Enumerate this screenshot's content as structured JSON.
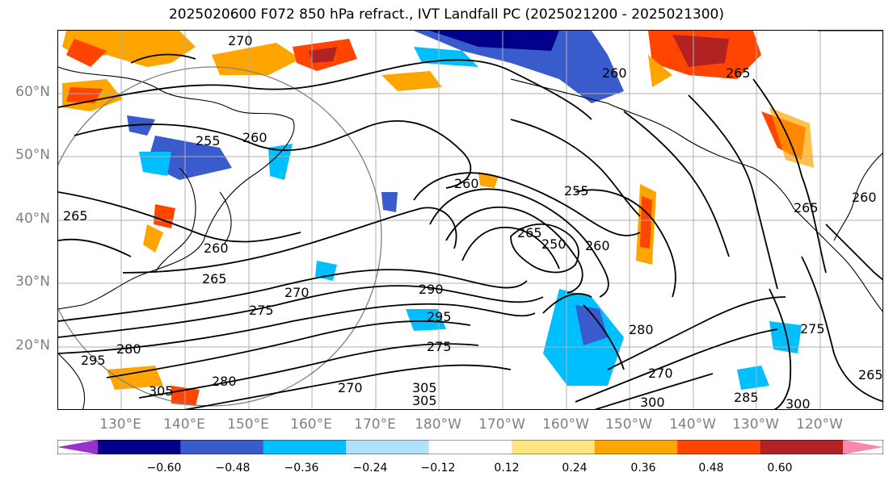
{
  "title": "2025020600 F072 850 hPa refract., IVT Landfall PC (2025021200 - 2025021300)",
  "lat_labels": [
    "60°N",
    "50°N",
    "40°N",
    "30°N",
    "20°N"
  ],
  "lon_labels": [
    "130°E",
    "140°E",
    "150°E",
    "160°E",
    "170°E",
    "180°W",
    "170°W",
    "160°W",
    "150°W",
    "140°W",
    "130°W",
    "120°W"
  ],
  "colorbar": {
    "colors": [
      "#9932cc",
      "#00008b",
      "#3a5bcc",
      "#00bfff",
      "#b0e2ff",
      "#ffffff",
      "#ffe680",
      "#ffa500",
      "#ff4500",
      "#b22222",
      "#ff88aa"
    ],
    "tick_labels": [
      "−0.60",
      "−0.48",
      "−0.36",
      "−0.24",
      "−0.12",
      "0.12",
      "0.24",
      "0.36",
      "0.48",
      "0.60"
    ]
  },
  "contour_labels": [
    "270",
    "255",
    "260",
    "260",
    "255",
    "265",
    "250",
    "260",
    "265",
    "270",
    "275",
    "280",
    "290",
    "295",
    "275",
    "295",
    "280",
    "280",
    "270",
    "305",
    "305",
    "305",
    "300",
    "265",
    "260",
    "265",
    "275",
    "265",
    "260",
    "285",
    "300",
    "265",
    "270",
    "260"
  ]
}
